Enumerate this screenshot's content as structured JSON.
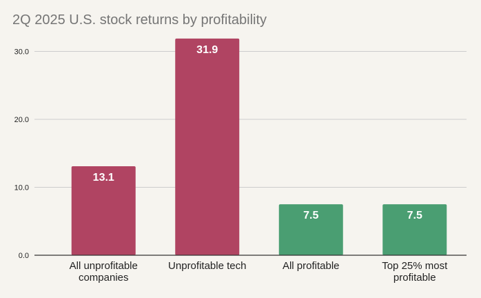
{
  "chart_data": {
    "type": "bar",
    "title": "2Q 2025 U.S. stock returns by profitability",
    "categories": [
      [
        "All unprofitable",
        "companies"
      ],
      [
        "Unprofitable tech"
      ],
      [
        "All profitable"
      ],
      [
        "Top 25% most",
        "profitable"
      ]
    ],
    "values": [
      13.1,
      31.9,
      7.5,
      7.5
    ],
    "data_labels": [
      "13.1",
      "31.9",
      "7.5",
      "7.5"
    ],
    "bar_colors": [
      "#b04462",
      "#b04462",
      "#4a9e72",
      "#4a9e72"
    ],
    "yticks": [
      0,
      10,
      20,
      30
    ],
    "ytick_labels": [
      "0.0",
      "10.0",
      "20.0",
      "30.0"
    ],
    "ylim": [
      0,
      33
    ],
    "xlabel": "",
    "ylabel": "",
    "grid": true,
    "gridline_color": "#cccccc",
    "axis_color": "#333333"
  }
}
